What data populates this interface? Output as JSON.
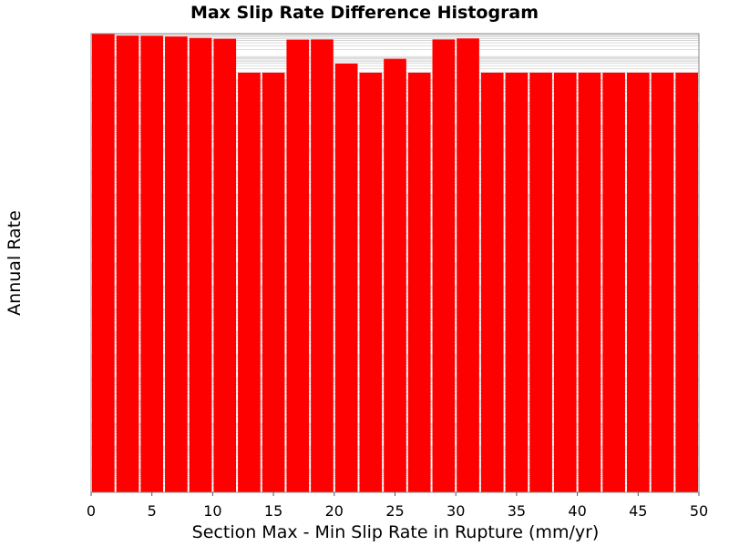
{
  "chart_data": {
    "type": "bar",
    "title": "Max Slip Rate Difference Histogram",
    "xlabel": "Section Max - Min Slip Rate in Rupture (mm/yr)",
    "ylabel": "Annual Rate",
    "x_ticks": [
      0,
      5,
      10,
      15,
      20,
      25,
      30,
      35,
      40,
      45,
      50
    ],
    "xlim": [
      0,
      50
    ],
    "y_scale": "log",
    "ylim": [
      1e-20,
      1
    ],
    "bin_width": 2,
    "x": [
      1,
      3,
      5,
      7,
      9,
      11,
      13,
      15,
      17,
      19,
      21,
      23,
      25,
      27,
      29,
      31,
      33,
      35,
      37,
      39,
      41,
      43,
      45,
      47,
      49
    ],
    "values": [
      1.0,
      0.82,
      0.81,
      0.75,
      0.65,
      0.6,
      0.02,
      0.02,
      0.55,
      0.56,
      0.05,
      0.02,
      0.08,
      0.02,
      0.56,
      0.62,
      0.02,
      0.02,
      0.02,
      0.02,
      0.02,
      0.02,
      0.02,
      0.02,
      0.02
    ],
    "bar_color": "#ff0000",
    "plot_background": "#ffffff",
    "grid": true
  }
}
